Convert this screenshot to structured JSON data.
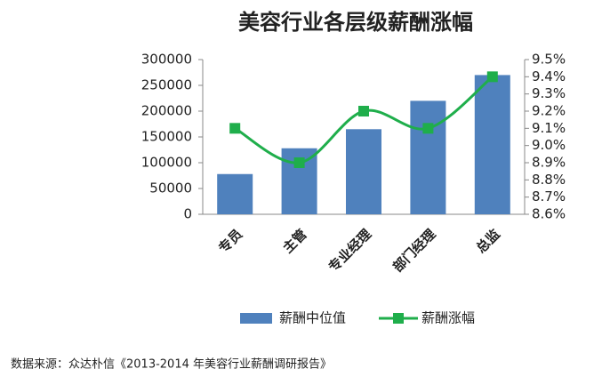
{
  "chart_data": {
    "type": "bar",
    "title": "美容行业各层级薪酬涨幅",
    "categories": [
      "专员",
      "主管",
      "专业经理",
      "部门经理",
      "总监"
    ],
    "series": [
      {
        "name": "薪酬中位值",
        "type": "bar",
        "color": "#4f81bd",
        "values": [
          78000,
          128000,
          165000,
          220000,
          270000
        ]
      },
      {
        "name": "薪酬涨幅",
        "type": "line",
        "axis": "y2",
        "color": "#1fae4b",
        "values": [
          9.1,
          8.9,
          9.2,
          9.1,
          9.4
        ]
      }
    ],
    "ylim": [
      0,
      300000
    ],
    "yticks": [
      0,
      50000,
      100000,
      150000,
      200000,
      250000,
      300000
    ],
    "y2lim": [
      8.6,
      9.5
    ],
    "y2ticks": [
      {
        "value": 8.6,
        "label": "8.6%"
      },
      {
        "value": 8.7,
        "label": "8.7%"
      },
      {
        "value": 8.8,
        "label": "8.8%"
      },
      {
        "value": 8.9,
        "label": "8.9%"
      },
      {
        "value": 9.0,
        "label": "9.0%"
      },
      {
        "value": 9.1,
        "label": "9.1%"
      },
      {
        "value": 9.2,
        "label": "9.2%"
      },
      {
        "value": 9.3,
        "label": "9.3%"
      },
      {
        "value": 9.4,
        "label": "9.4%"
      },
      {
        "value": 9.5,
        "label": "9.5%"
      }
    ],
    "grid": false,
    "legend": "bottom",
    "source": "数据来源：众达朴信《2013-2014 年美容行业薪酬调研报告》"
  }
}
